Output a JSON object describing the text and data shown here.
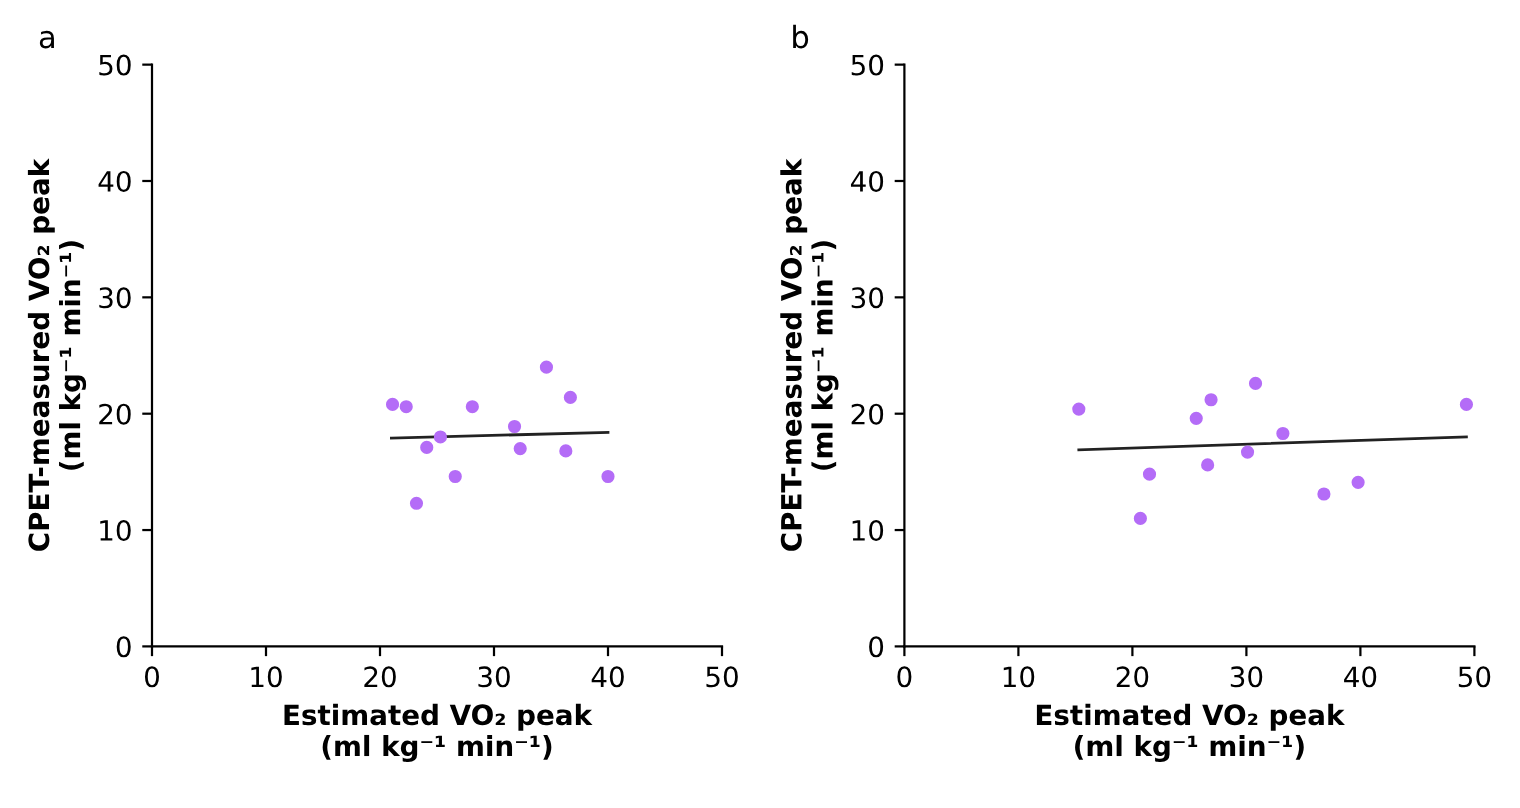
{
  "chart_data": [
    {
      "type": "scatter",
      "title": "a",
      "xlabel": "Estimated VO₂ peak\n(ml kg⁻¹ min⁻¹)",
      "ylabel": "CPET-measured VO₂ peak\n(ml kg⁻¹ min⁻¹)",
      "xlim": [
        0,
        50
      ],
      "ylim": [
        0,
        50
      ],
      "xticks": [
        0,
        10,
        20,
        30,
        40,
        50
      ],
      "yticks": [
        0,
        10,
        20,
        30,
        40,
        50
      ],
      "grid": false,
      "legend": false,
      "series": [
        {
          "marker": "circle",
          "color": "#b46cf7",
          "x": [
            21.1,
            22.3,
            28.1,
            34.6,
            36.7,
            31.8,
            25.3,
            24.1,
            32.3,
            36.3,
            26.6,
            40.0,
            23.2
          ],
          "values": [
            20.8,
            20.6,
            20.6,
            24.0,
            21.4,
            18.9,
            18.0,
            17.1,
            17.0,
            16.8,
            14.6,
            14.6,
            12.3
          ]
        },
        {
          "type": "line",
          "color": "#222222",
          "line_style": "solid",
          "x": [
            21.0,
            40.0
          ],
          "values": [
            17.9,
            18.4
          ]
        }
      ]
    },
    {
      "type": "scatter",
      "title": "b",
      "xlabel": "Estimated VO₂ peak\n(ml kg⁻¹ min⁻¹)",
      "ylabel": "CPET-measured VO₂ peak\n(ml kg⁻¹ min⁻¹)",
      "xlim": [
        0,
        50
      ],
      "ylim": [
        0,
        50
      ],
      "xticks": [
        0,
        10,
        20,
        30,
        40,
        50
      ],
      "yticks": [
        0,
        10,
        20,
        30,
        40,
        50
      ],
      "grid": false,
      "legend": false,
      "series": [
        {
          "marker": "circle",
          "color": "#b46cf7",
          "x": [
            15.3,
            20.7,
            21.5,
            25.6,
            26.9,
            26.6,
            30.8,
            30.1,
            33.2,
            36.8,
            39.8,
            49.3
          ],
          "values": [
            20.4,
            11.0,
            14.8,
            19.6,
            21.2,
            15.6,
            22.6,
            16.7,
            18.3,
            13.1,
            14.1,
            20.8
          ]
        },
        {
          "type": "line",
          "color": "#222222",
          "line_style": "solid",
          "x": [
            15.3,
            49.3
          ],
          "values": [
            16.9,
            18.0
          ]
        }
      ]
    }
  ]
}
